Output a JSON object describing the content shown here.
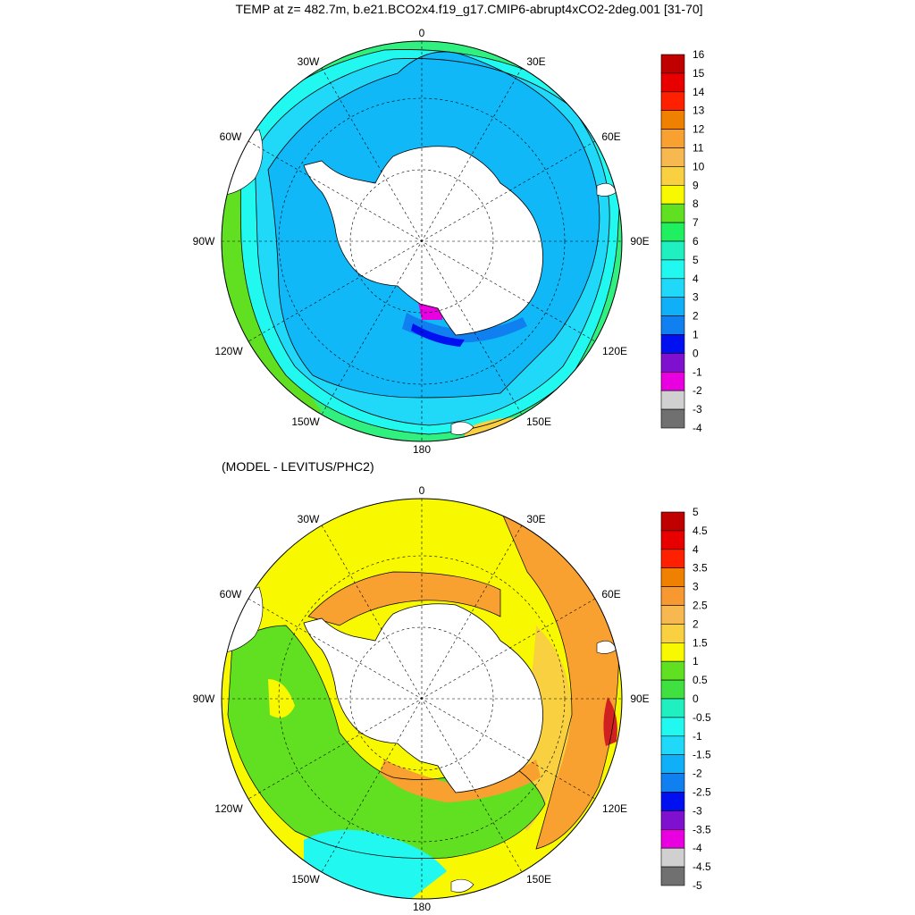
{
  "titles": {
    "top": "TEMP at z= 482.7m, b.e21.BCO2x4.f19_g17.CMIP6-abrupt4xCO2-2deg.001 [31-70]",
    "bottom": "(MODEL - LEVITUS/PHC2)"
  },
  "longitude_labels": [
    "0",
    "30E",
    "60E",
    "90E",
    "120E",
    "150E",
    "180",
    "150W",
    "120W",
    "90W",
    "60W",
    "30W"
  ],
  "colorbars": {
    "top": {
      "labels": [
        "16",
        "15",
        "14",
        "13",
        "12",
        "11",
        "10",
        "9",
        "8",
        "7",
        "6",
        "5",
        "4",
        "3",
        "2",
        "1",
        "0",
        "-1",
        "-2",
        "-3",
        "-4"
      ],
      "colors": [
        "#c00000",
        "#e80000",
        "#ff2000",
        "#f08000",
        "#f8a030",
        "#f8b850",
        "#f8d040",
        "#f8f800",
        "#60e020",
        "#20f060",
        "#20f0c0",
        "#20f8f0",
        "#20d8f8",
        "#10b0f8",
        "#1080f0",
        "#0010f0",
        "#8010d0",
        "#e800e0",
        "#d0d0d0",
        "#707070"
      ]
    },
    "bottom": {
      "labels": [
        "5",
        "4.5",
        "4",
        "3.5",
        "3",
        "2.5",
        "2",
        "1.5",
        "1",
        "0.5",
        "0",
        "-0.5",
        "-1",
        "-1.5",
        "-2",
        "-2.5",
        "-3",
        "-3.5",
        "-4",
        "-4.5",
        "-5"
      ],
      "colors": [
        "#c00000",
        "#e80000",
        "#ff2000",
        "#f08000",
        "#f89830",
        "#f8b850",
        "#f8d040",
        "#f8f800",
        "#60e020",
        "#40e040",
        "#20f0c0",
        "#20f8f0",
        "#20d8f8",
        "#10b0f8",
        "#1080f0",
        "#0010f0",
        "#8010d0",
        "#e800e0",
        "#d0d0d0",
        "#707070"
      ]
    }
  },
  "map_colors": {
    "land": "#ffffff",
    "top_fields": [
      "#20e0f8",
      "#10b8f8",
      "#20f8f0",
      "#30f080",
      "#60e020"
    ],
    "bottom_fields": [
      "#f8f800",
      "#f8d040",
      "#60e020",
      "#f8a030",
      "#20f8f0",
      "#d02020"
    ]
  }
}
